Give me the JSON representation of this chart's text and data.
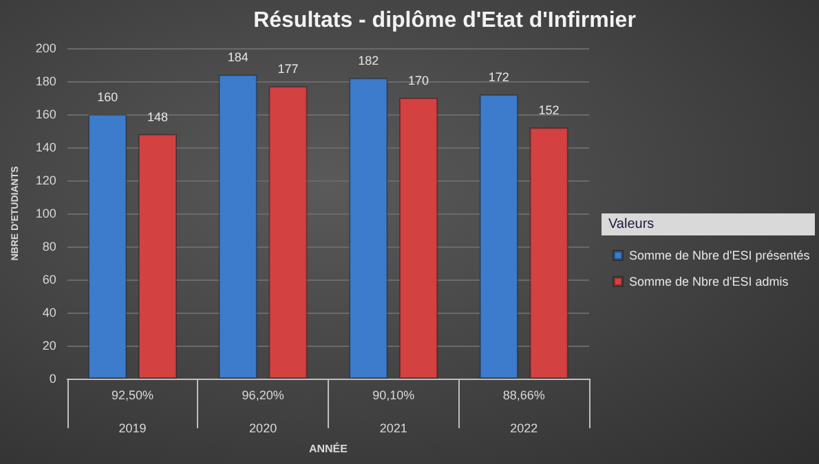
{
  "chart_data": {
    "type": "bar",
    "title": "Résultats - diplôme d'Etat d'Infirmier",
    "xlabel": "ANNÉE",
    "ylabel": "NBRE D'ETUDIANTS",
    "legend_title": "Valeurs",
    "categories": [
      "2019",
      "2020",
      "2021",
      "2022"
    ],
    "series": [
      {
        "name": "Somme de Nbre d'ESI présentés",
        "color": "#3d7ccc",
        "values": [
          160,
          184,
          182,
          172
        ]
      },
      {
        "name": "Somme de Nbre d'ESI admis",
        "color": "#d34141",
        "values": [
          148,
          177,
          170,
          152
        ]
      }
    ],
    "annotations": [
      "92,50%",
      "96,20%",
      "90,10%",
      "88,66%"
    ],
    "ylim": [
      0,
      200
    ],
    "yticks": [
      0,
      20,
      40,
      60,
      80,
      100,
      120,
      140,
      160,
      180,
      200
    ],
    "grid": "y",
    "legend": "right",
    "data_labels": true
  }
}
